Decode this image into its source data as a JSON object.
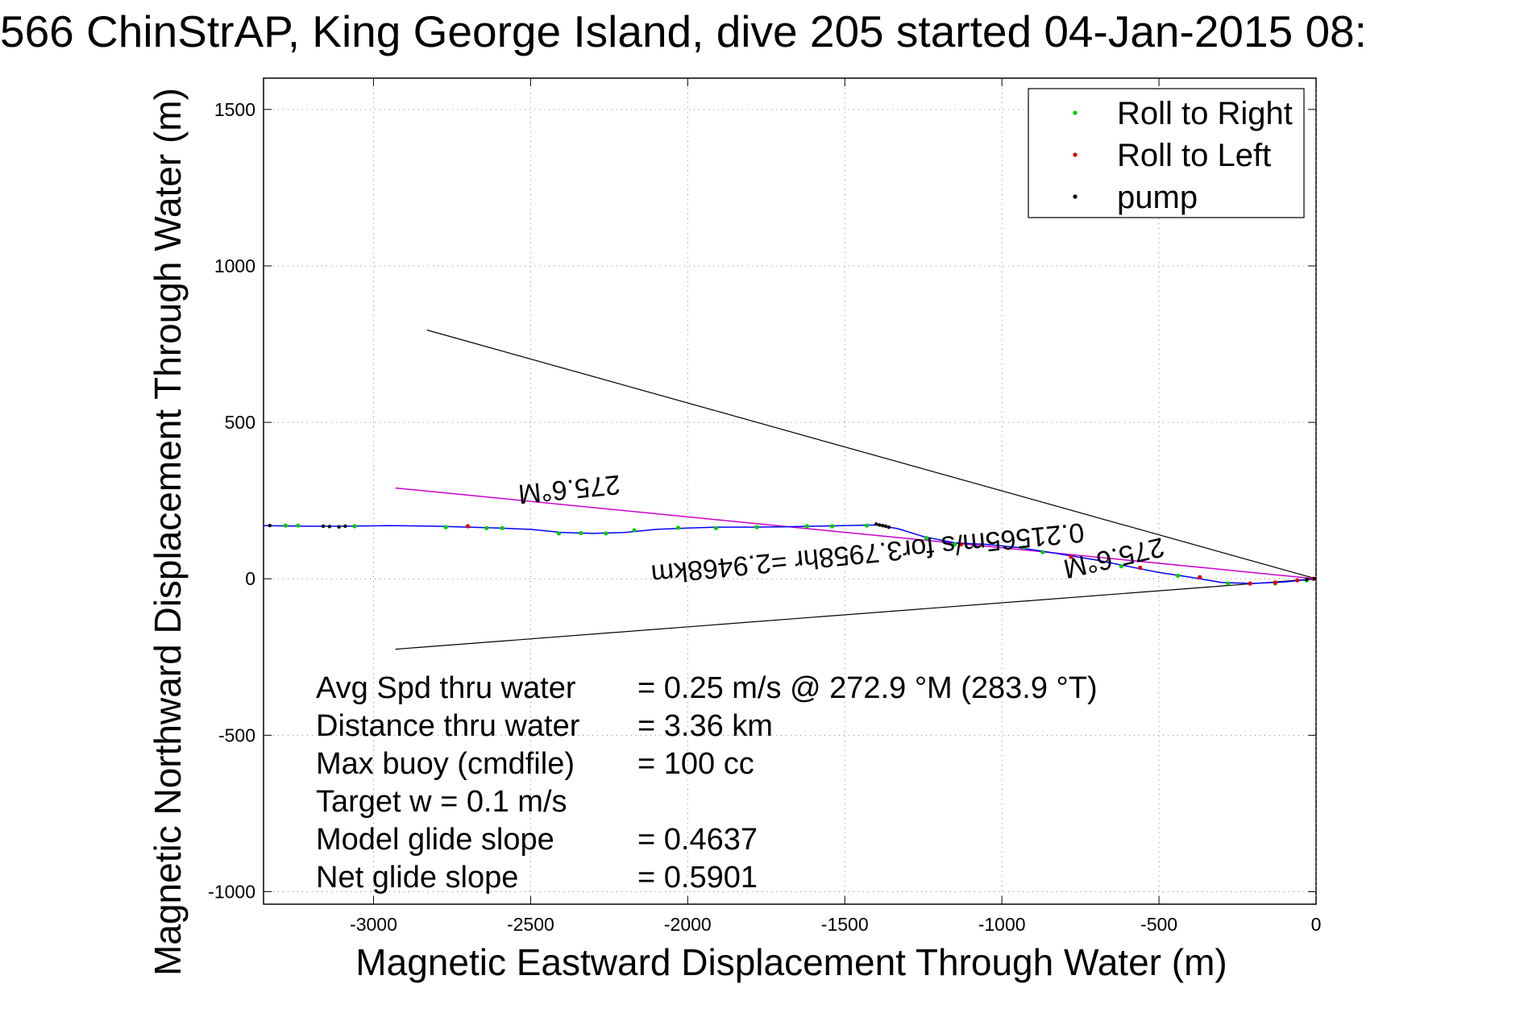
{
  "title": "566 ChinStrAP, King George Island, dive 205 started 04-Jan-2015 08:",
  "colors": {
    "roll_right": "#00cc00",
    "roll_left": "#dd0000",
    "pump": "#000000",
    "track": "#0000ff",
    "heading_line": "#cc00cc",
    "envelope": "#000000"
  },
  "chart_data": {
    "type": "scatter",
    "xlabel": "Magnetic Eastward Displacement Through Water (m)",
    "ylabel": "Magnetic Northward Displacement Through Water (m)",
    "xlim": [
      -3350,
      0
    ],
    "ylim": [
      -1040,
      1600
    ],
    "xticks": [
      -3000,
      -2500,
      -2000,
      -1500,
      -1000,
      -500,
      0
    ],
    "yticks": [
      -1000,
      -500,
      0,
      500,
      1000,
      1500
    ],
    "grid": "dotted",
    "legend_position": "top-right",
    "series": [
      {
        "name": "Roll to Right",
        "color": "#00cc00",
        "points": [
          [
            -3280,
            170
          ],
          [
            -3240,
            170
          ],
          [
            -3060,
            168
          ],
          [
            -2770,
            165
          ],
          [
            -2640,
            162
          ],
          [
            -2590,
            162
          ],
          [
            -2410,
            145
          ],
          [
            -2340,
            146
          ],
          [
            -2260,
            145
          ],
          [
            -2170,
            155
          ],
          [
            -2030,
            163
          ],
          [
            -1910,
            162
          ],
          [
            -1780,
            165
          ],
          [
            -1620,
            168
          ],
          [
            -1540,
            168
          ],
          [
            -1430,
            170
          ],
          [
            -1240,
            130
          ],
          [
            -1150,
            110
          ],
          [
            -930,
            100
          ],
          [
            -870,
            85
          ],
          [
            -620,
            40
          ],
          [
            -440,
            10
          ],
          [
            -280,
            -15
          ],
          [
            -130,
            -15
          ],
          [
            -30,
            -5
          ]
        ]
      },
      {
        "name": "Roll to Left",
        "color": "#dd0000",
        "points": [
          [
            -2700,
            168
          ],
          [
            -1130,
            110
          ],
          [
            -780,
            70
          ],
          [
            -560,
            35
          ],
          [
            -370,
            5
          ],
          [
            -210,
            -15
          ],
          [
            -130,
            -12
          ],
          [
            -60,
            -5
          ],
          [
            -10,
            0
          ]
        ]
      },
      {
        "name": "pump",
        "color": "#000000",
        "points": [
          [
            -3330,
            170
          ],
          [
            -3160,
            168
          ],
          [
            -3140,
            167
          ],
          [
            -3110,
            166
          ],
          [
            -3090,
            168
          ],
          [
            -1400,
            175
          ],
          [
            -1390,
            172
          ],
          [
            -1380,
            170
          ],
          [
            -1370,
            168
          ],
          [
            -1360,
            165
          ],
          [
            -30,
            -2
          ],
          [
            -5,
            0
          ]
        ]
      }
    ],
    "track": [
      [
        -3350,
        170
      ],
      [
        -3200,
        168
      ],
      [
        -3100,
        168
      ],
      [
        -2950,
        170
      ],
      [
        -2800,
        168
      ],
      [
        -2700,
        165
      ],
      [
        -2600,
        162
      ],
      [
        -2500,
        158
      ],
      [
        -2400,
        148
      ],
      [
        -2300,
        145
      ],
      [
        -2200,
        148
      ],
      [
        -2100,
        158
      ],
      [
        -2000,
        162
      ],
      [
        -1900,
        165
      ],
      [
        -1800,
        165
      ],
      [
        -1700,
        166
      ],
      [
        -1600,
        168
      ],
      [
        -1500,
        170
      ],
      [
        -1400,
        172
      ],
      [
        -1330,
        160
      ],
      [
        -1250,
        135
      ],
      [
        -1150,
        115
      ],
      [
        -1050,
        110
      ],
      [
        -950,
        100
      ],
      [
        -850,
        85
      ],
      [
        -700,
        60
      ],
      [
        -600,
        40
      ],
      [
        -500,
        20
      ],
      [
        -400,
        5
      ],
      [
        -300,
        -12
      ],
      [
        -200,
        -15
      ],
      [
        -100,
        -10
      ],
      [
        0,
        0
      ]
    ],
    "heading_line": [
      [
        -2930,
        290
      ],
      [
        0,
        0
      ]
    ],
    "envelope_upper": [
      [
        -2830,
        795
      ],
      [
        0,
        0
      ]
    ],
    "envelope_lower": [
      [
        -2930,
        -225
      ],
      [
        0,
        0
      ]
    ],
    "annotations": {
      "heading_upper": "275.6°M",
      "heading_lower": "275.6°M",
      "speed": "0.21565m/s for3.7958hr =2.9468km"
    },
    "stats": [
      {
        "label": "Avg Spd thru water",
        "value": "=  0.25 m/s @ 272.9 °M (283.9 °T)"
      },
      {
        "label": "Distance thru water",
        "value": "=  3.36 km"
      },
      {
        "label": "Max buoy (cmdfile)",
        "value": "= 100 cc"
      },
      {
        "label": "Target w    = 0.1 m/s",
        "value": ""
      },
      {
        "label": "Model glide slope",
        "value": "= 0.4637"
      },
      {
        "label": "Net glide slope",
        "value": "= 0.5901"
      }
    ]
  }
}
